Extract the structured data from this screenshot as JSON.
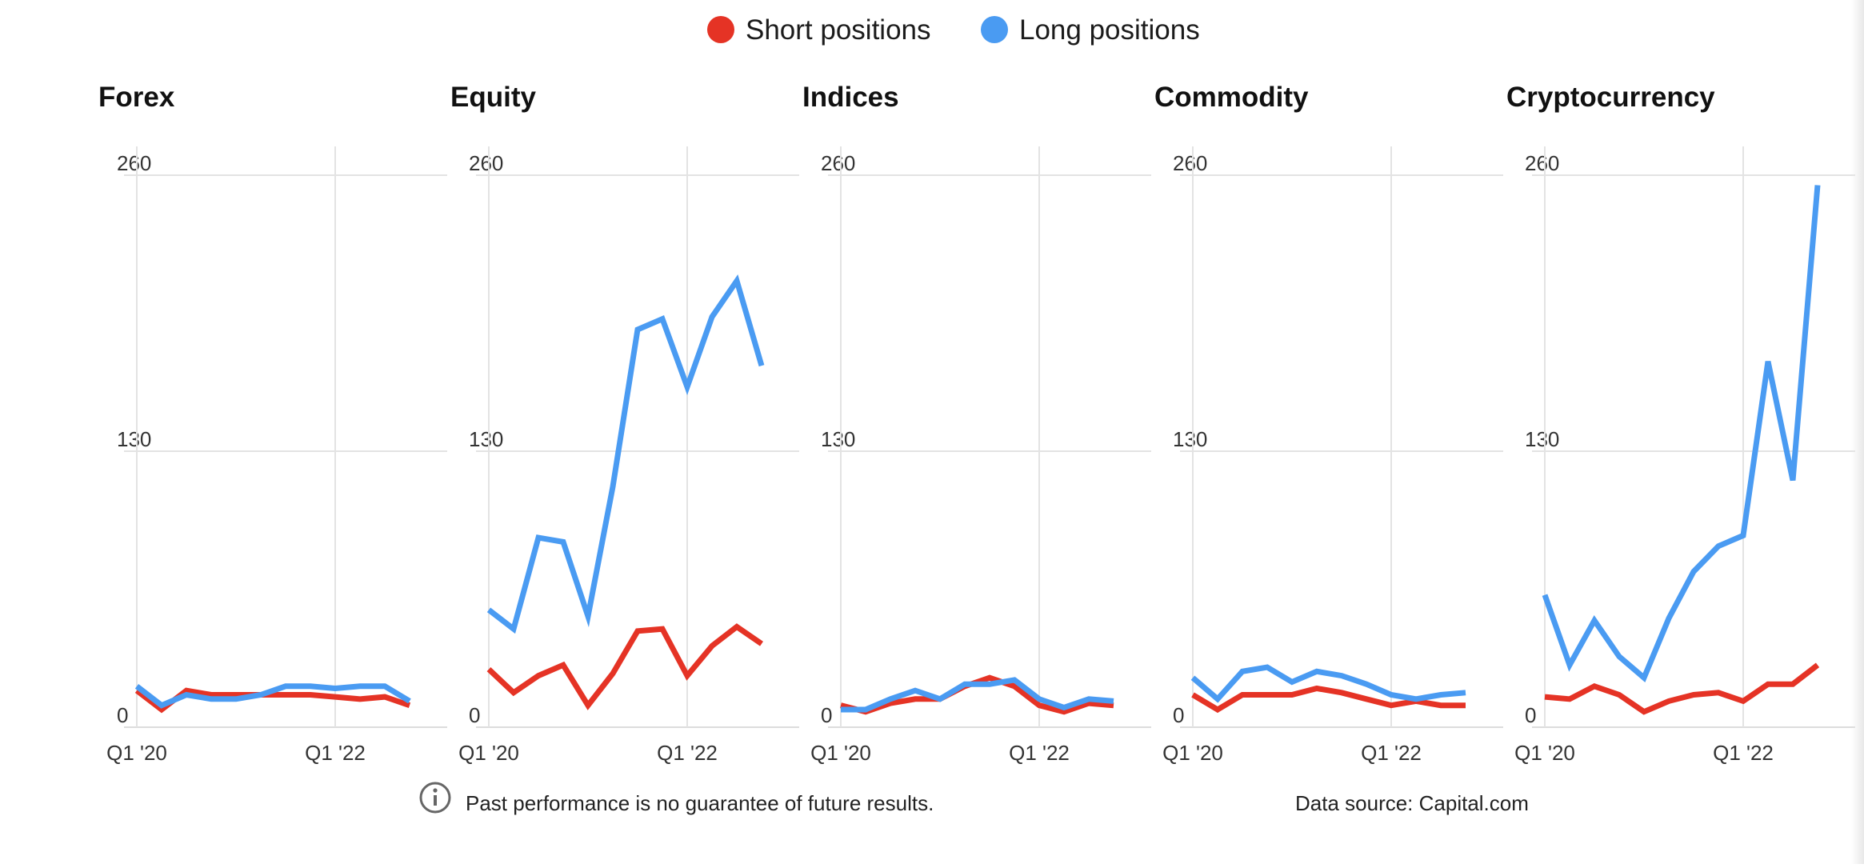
{
  "legend": {
    "items": [
      {
        "label": "Short positions",
        "color": "#e53325"
      },
      {
        "label": "Long positions",
        "color": "#4a9bf2"
      }
    ]
  },
  "footer": {
    "disclaimer": "Past performance is no guarantee of future results.",
    "disclaimer_icon": "info-icon",
    "source": "Data source: Capital.com"
  },
  "chart_data": [
    {
      "type": "line",
      "title": "Forex",
      "x": [
        "Q1 '20",
        "Q2 '20",
        "Q3 '20",
        "Q4 '20",
        "Q1 '21",
        "Q2 '21",
        "Q3 '21",
        "Q4 '21",
        "Q1 '22",
        "Q2 '22",
        "Q3 '22",
        "Q4 '22"
      ],
      "x_tick_labels": [
        "Q1 '20",
        "Q1 '22"
      ],
      "y_tick_labels": [
        "0",
        "130",
        "260"
      ],
      "ylim": [
        0,
        260
      ],
      "grid": true,
      "series": [
        {
          "name": "Short positions",
          "color": "#e53325",
          "values": [
            12,
            3,
            12,
            10,
            10,
            10,
            10,
            10,
            9,
            8,
            9,
            5
          ]
        },
        {
          "name": "Long positions",
          "color": "#4a9bf2",
          "values": [
            14,
            5,
            10,
            8,
            8,
            10,
            14,
            14,
            13,
            14,
            14,
            7
          ]
        }
      ]
    },
    {
      "type": "line",
      "title": "Equity",
      "x": [
        "Q1 '20",
        "Q2 '20",
        "Q3 '20",
        "Q4 '20",
        "Q1 '21",
        "Q2 '21",
        "Q3 '21",
        "Q4 '21",
        "Q1 '22",
        "Q2 '22",
        "Q3 '22",
        "Q4 '22"
      ],
      "x_tick_labels": [
        "Q1 '20",
        "Q1 '22"
      ],
      "y_tick_labels": [
        "0",
        "130",
        "260"
      ],
      "ylim": [
        0,
        260
      ],
      "grid": true,
      "series": [
        {
          "name": "Short positions",
          "color": "#e53325",
          "values": [
            22,
            11,
            19,
            24,
            5,
            20,
            40,
            41,
            19,
            33,
            42,
            34
          ]
        },
        {
          "name": "Long positions",
          "color": "#4a9bf2",
          "values": [
            50,
            41,
            84,
            82,
            47,
            108,
            182,
            187,
            155,
            188,
            205,
            165
          ]
        }
      ]
    },
    {
      "type": "line",
      "title": "Indices",
      "x": [
        "Q1 '20",
        "Q2 '20",
        "Q3 '20",
        "Q4 '20",
        "Q1 '21",
        "Q2 '21",
        "Q3 '21",
        "Q4 '21",
        "Q1 '22",
        "Q2 '22",
        "Q3 '22",
        "Q4 '22"
      ],
      "x_tick_labels": [
        "Q1 '20",
        "Q1 '22"
      ],
      "y_tick_labels": [
        "0",
        "130",
        "260"
      ],
      "ylim": [
        0,
        260
      ],
      "grid": true,
      "series": [
        {
          "name": "Short positions",
          "color": "#e53325",
          "values": [
            5,
            2,
            6,
            8,
            8,
            14,
            18,
            14,
            5,
            2,
            6,
            5
          ]
        },
        {
          "name": "Long positions",
          "color": "#4a9bf2",
          "values": [
            3,
            3,
            8,
            12,
            8,
            15,
            15,
            17,
            8,
            4,
            8,
            7
          ]
        }
      ]
    },
    {
      "type": "line",
      "title": "Commodity",
      "x": [
        "Q1 '20",
        "Q2 '20",
        "Q3 '20",
        "Q4 '20",
        "Q1 '21",
        "Q2 '21",
        "Q3 '21",
        "Q4 '21",
        "Q1 '22",
        "Q2 '22",
        "Q3 '22",
        "Q4 '22"
      ],
      "x_tick_labels": [
        "Q1 '20",
        "Q1 '22"
      ],
      "y_tick_labels": [
        "0",
        "130",
        "260"
      ],
      "ylim": [
        0,
        260
      ],
      "grid": true,
      "series": [
        {
          "name": "Short positions",
          "color": "#e53325",
          "values": [
            10,
            3,
            10,
            10,
            10,
            13,
            11,
            8,
            5,
            7,
            5,
            5
          ]
        },
        {
          "name": "Long positions",
          "color": "#4a9bf2",
          "values": [
            18,
            8,
            21,
            23,
            16,
            21,
            19,
            15,
            10,
            8,
            10,
            11
          ]
        }
      ]
    },
    {
      "type": "line",
      "title": "Cryptocurrency",
      "x": [
        "Q1 '20",
        "Q2 '20",
        "Q3 '20",
        "Q4 '20",
        "Q1 '21",
        "Q2 '21",
        "Q3 '21",
        "Q4 '21",
        "Q1 '22",
        "Q2 '22",
        "Q3 '22",
        "Q4 '22"
      ],
      "x_tick_labels": [
        "Q1 '20",
        "Q1 '22"
      ],
      "y_tick_labels": [
        "0",
        "130",
        "260"
      ],
      "ylim": [
        0,
        260
      ],
      "grid": true,
      "series": [
        {
          "name": "Short positions",
          "color": "#e53325",
          "values": [
            9,
            8,
            14,
            10,
            2,
            7,
            10,
            11,
            7,
            15,
            15,
            24
          ]
        },
        {
          "name": "Long positions",
          "color": "#4a9bf2",
          "values": [
            57,
            24,
            45,
            28,
            18,
            46,
            68,
            80,
            85,
            167,
            111,
            250
          ]
        }
      ]
    }
  ]
}
